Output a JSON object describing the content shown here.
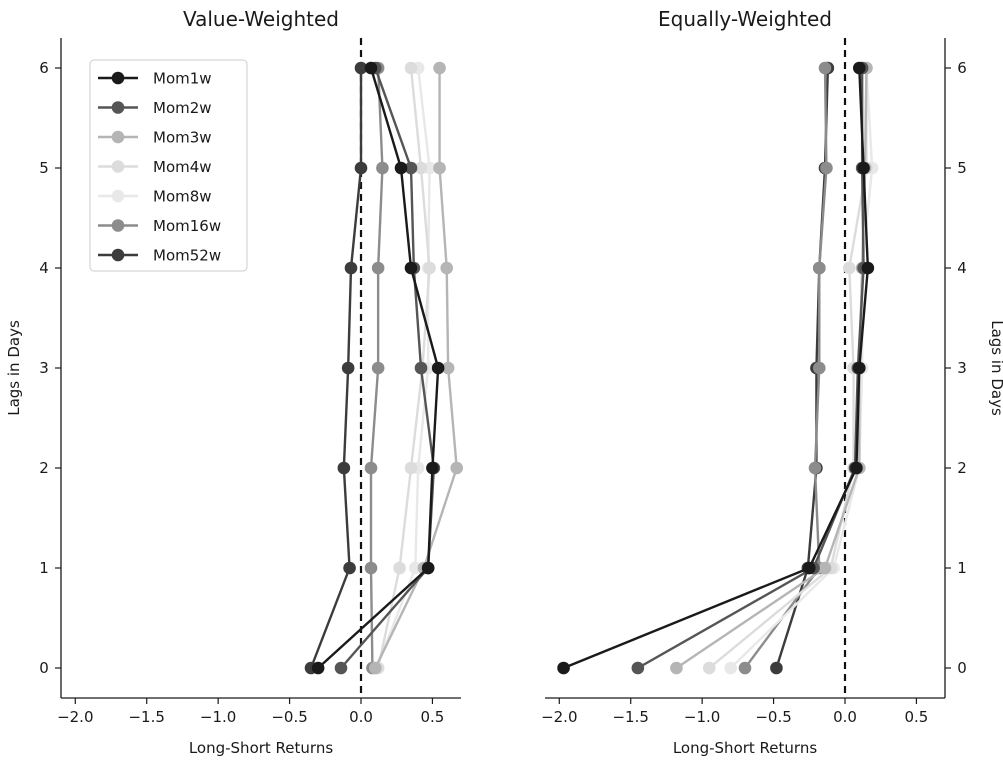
{
  "chart_data": [
    {
      "type": "line",
      "title": "Value-Weighted",
      "xlabel": "Long-Short Returns",
      "ylabel": "Lags in Days",
      "xlim": [
        -2.1,
        0.7
      ],
      "ylim": [
        -0.3,
        6.3
      ],
      "xticks": [
        "−2.0",
        "−1.5",
        "−1.0",
        "−0.5",
        "0.0",
        "0.5"
      ],
      "yticks": [
        "0",
        "1",
        "2",
        "3",
        "4",
        "5",
        "6"
      ],
      "reference_line": {
        "x": 0,
        "style": "dashed"
      },
      "grid": false,
      "legend": "top-left",
      "y": [
        0,
        1,
        2,
        3,
        4,
        5,
        6
      ],
      "series": [
        {
          "name": "Mom1w",
          "color": "#1a1a1a",
          "values": [
            -0.3,
            0.47,
            0.5,
            0.54,
            0.35,
            0.28,
            0.07
          ]
        },
        {
          "name": "Mom2w",
          "color": "#555555",
          "values": [
            -0.14,
            0.47,
            0.51,
            0.42,
            0.37,
            0.35,
            0.1
          ]
        },
        {
          "name": "Mom3w",
          "color": "#b5b5b5",
          "values": [
            0.1,
            0.44,
            0.67,
            0.61,
            0.6,
            0.55,
            0.55
          ]
        },
        {
          "name": "Mom4w",
          "color": "#dcdcdc",
          "values": [
            0.12,
            0.27,
            0.35,
            0.43,
            0.48,
            0.42,
            0.35
          ]
        },
        {
          "name": "Mom8w",
          "color": "#e8e8e8",
          "values": [
            0.11,
            0.38,
            0.4,
            0.47,
            0.47,
            0.48,
            0.4
          ]
        },
        {
          "name": "Mom16w",
          "color": "#8c8c8c",
          "values": [
            0.08,
            0.07,
            0.07,
            0.12,
            0.12,
            0.15,
            0.12
          ]
        },
        {
          "name": "Mom52w",
          "color": "#3c3c3c",
          "values": [
            -0.35,
            -0.08,
            -0.12,
            -0.09,
            -0.07,
            0.0,
            0.0
          ]
        }
      ]
    },
    {
      "type": "line",
      "title": "Equally-Weighted",
      "xlabel": "Long-Short Returns",
      "ylabel": "Lags in Days",
      "xlim": [
        -2.1,
        0.7
      ],
      "ylim": [
        -0.3,
        6.3
      ],
      "xticks": [
        "−2.0",
        "−1.5",
        "−1.0",
        "−0.5",
        "0.0",
        "0.5"
      ],
      "yticks": [
        "0",
        "1",
        "2",
        "3",
        "4",
        "5",
        "6"
      ],
      "reference_line": {
        "x": 0,
        "style": "dashed"
      },
      "grid": false,
      "y": [
        0,
        1,
        2,
        3,
        4,
        5,
        6
      ],
      "series": [
        {
          "name": "Mom1w",
          "color": "#1a1a1a",
          "values": [
            -1.97,
            -0.25,
            0.08,
            0.1,
            0.16,
            0.13,
            0.1
          ]
        },
        {
          "name": "Mom2w",
          "color": "#555555",
          "values": [
            -1.45,
            -0.22,
            0.07,
            0.09,
            0.13,
            0.12,
            0.12
          ]
        },
        {
          "name": "Mom3w",
          "color": "#b5b5b5",
          "values": [
            -1.18,
            -0.14,
            0.1,
            0.1,
            0.12,
            0.14,
            0.15
          ]
        },
        {
          "name": "Mom4w",
          "color": "#dcdcdc",
          "values": [
            -0.95,
            -0.1,
            0.06,
            0.06,
            0.03,
            0.15,
            0.15
          ]
        },
        {
          "name": "Mom8w",
          "color": "#e8e8e8",
          "values": [
            -0.8,
            -0.08,
            0.1,
            0.12,
            0.12,
            0.19,
            0.15
          ]
        },
        {
          "name": "Mom16w",
          "color": "#8c8c8c",
          "values": [
            -0.7,
            -0.18,
            -0.21,
            -0.18,
            -0.18,
            -0.13,
            -0.14
          ]
        },
        {
          "name": "Mom52w",
          "color": "#3c3c3c",
          "values": [
            -0.48,
            -0.26,
            -0.2,
            -0.2,
            -0.18,
            -0.14,
            -0.12
          ]
        }
      ]
    }
  ]
}
